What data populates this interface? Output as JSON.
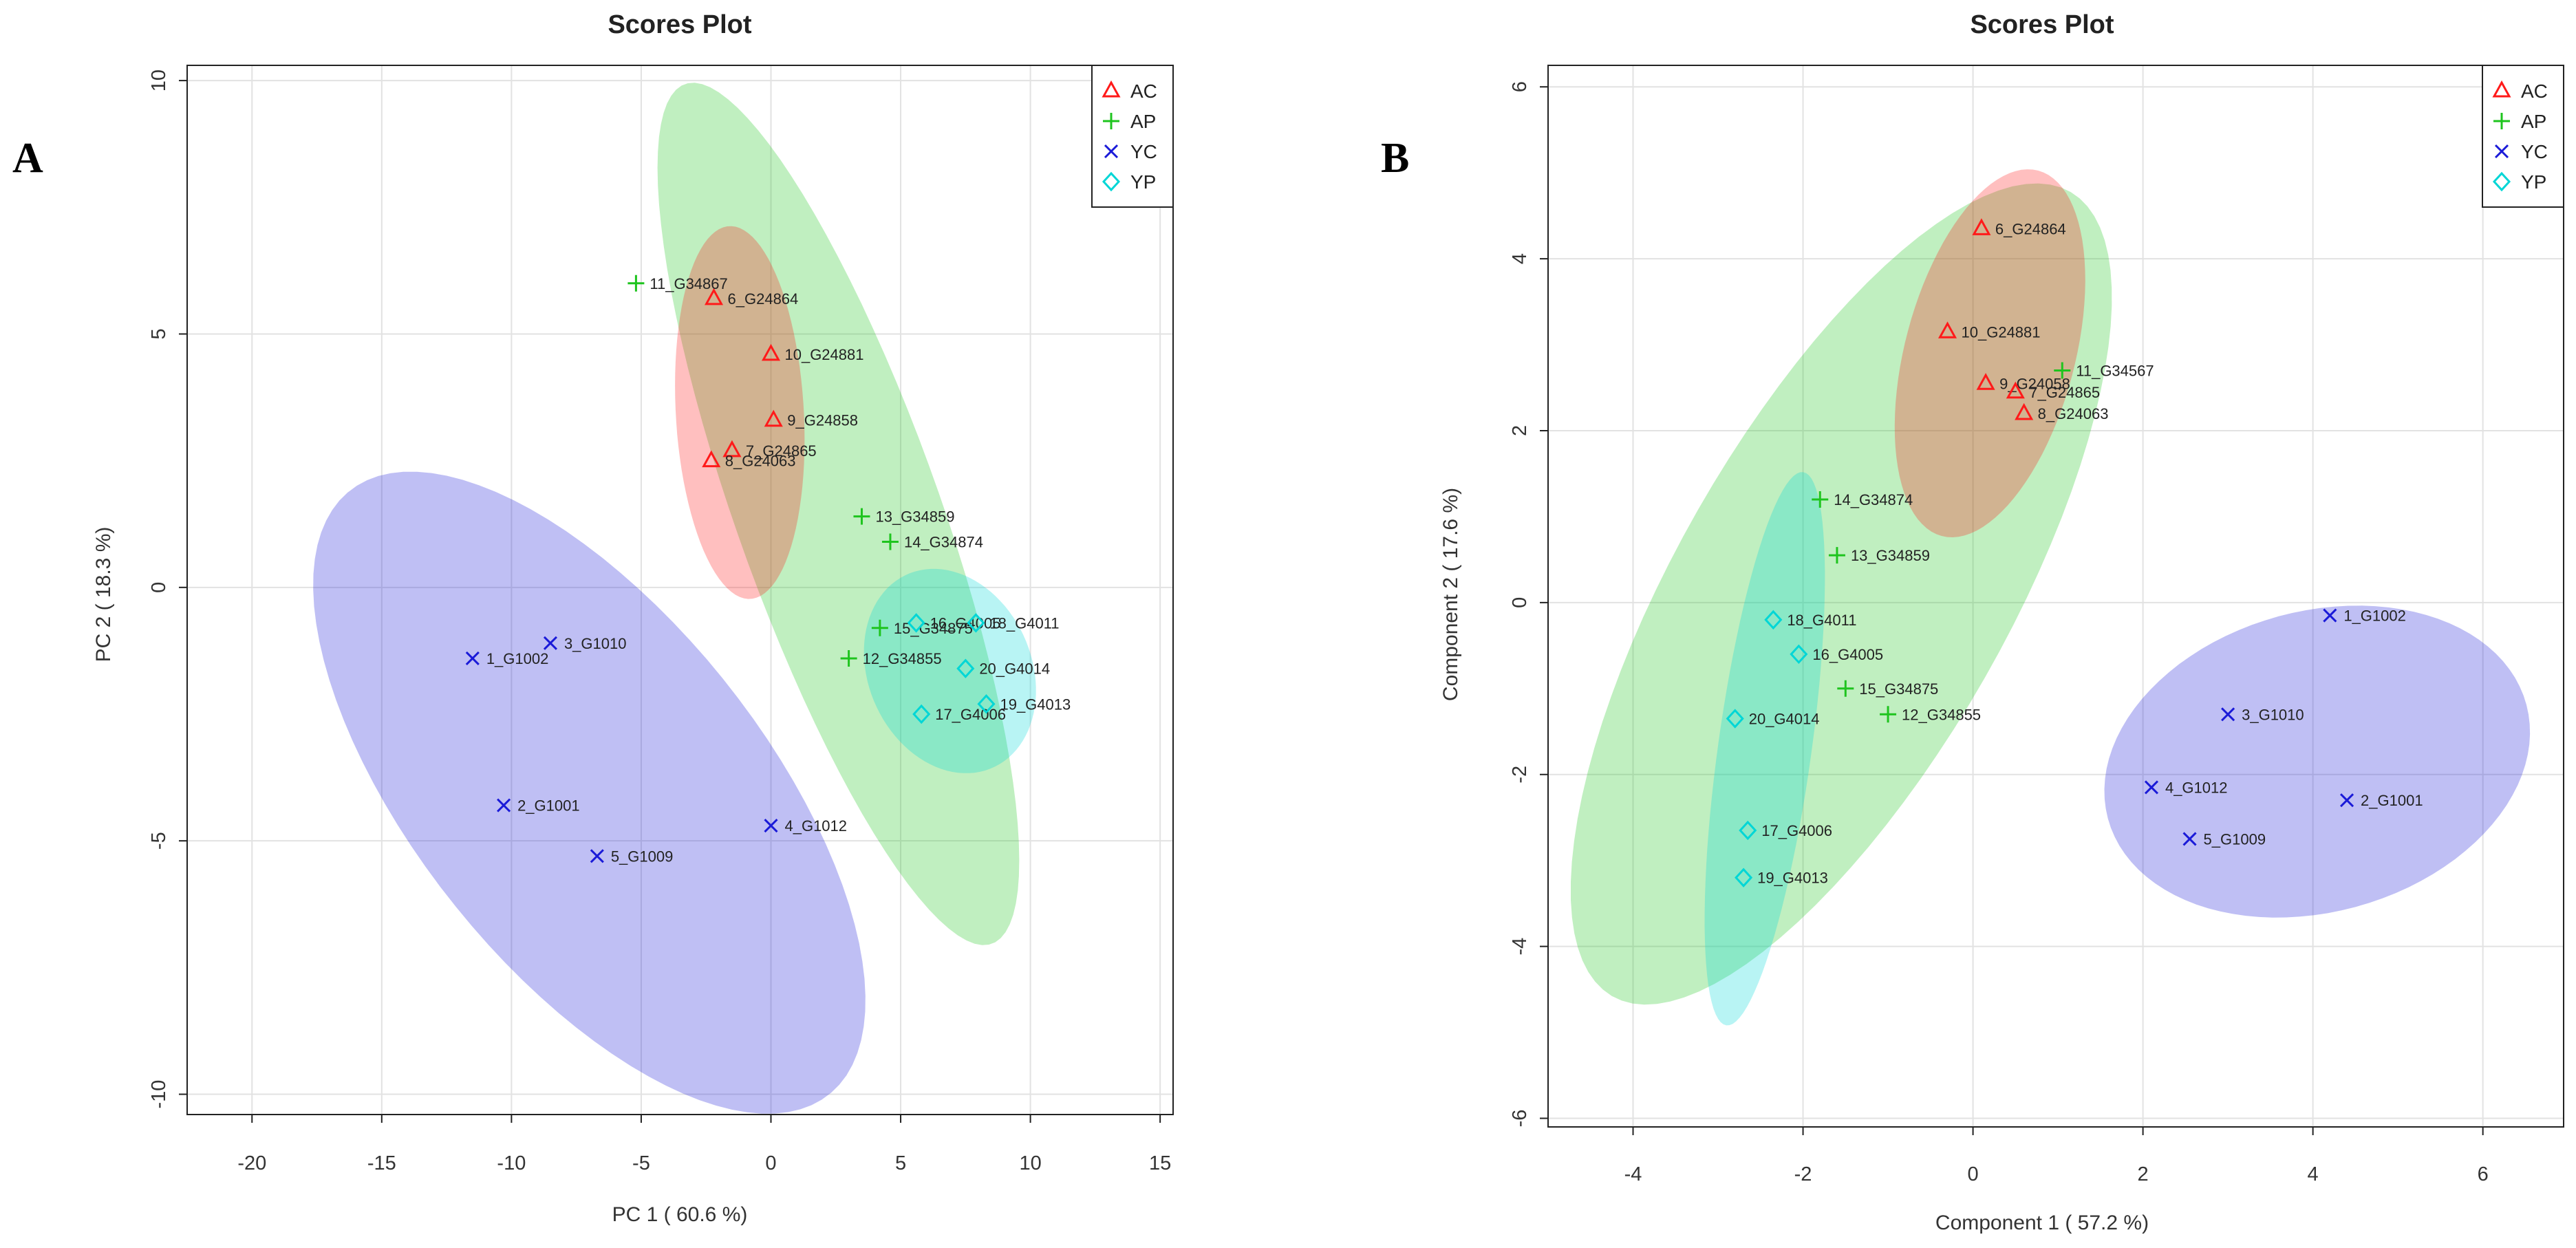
{
  "panel_letters": [
    "A",
    "B"
  ],
  "colors": {
    "AC": "#ff1a1a",
    "AP": "#1ec41e",
    "YC": "#1a1ad8",
    "YP": "#00d6d6"
  },
  "chart_data": [
    {
      "type": "scatter",
      "panel": "A",
      "title": "Scores Plot",
      "xlabel": "PC 1 ( 60.6 %)",
      "ylabel": "PC 2 ( 18.3 %)",
      "xlim": [
        -22.5,
        15.5
      ],
      "ylim": [
        -10.4,
        10.3
      ],
      "xticks": [
        -20,
        -15,
        -10,
        -5,
        0,
        5,
        10,
        15
      ],
      "yticks": [
        -10,
        -5,
        0,
        5,
        10
      ],
      "tick_labels_x": [
        "-20",
        "-15",
        "-10",
        "-5",
        "0",
        "5",
        "10",
        "15"
      ],
      "tick_labels_y": [
        "-10",
        "-5",
        "0",
        "5",
        "10"
      ],
      "legend": [
        "AC",
        "AP",
        "YC",
        "YP"
      ],
      "legend_position": "top-right",
      "series": [
        {
          "name": "AC",
          "marker": "triangle",
          "points": [
            {
              "x": -2.2,
              "y": 5.7,
              "label": "6_G24864"
            },
            {
              "x": 0.0,
              "y": 4.6,
              "label": "10_G24881"
            },
            {
              "x": 0.1,
              "y": 3.3,
              "label": "9_G24858"
            },
            {
              "x": -1.5,
              "y": 2.7,
              "label": "7_G24865"
            },
            {
              "x": -2.3,
              "y": 2.5,
              "label": "8_G24063"
            }
          ]
        },
        {
          "name": "AP",
          "marker": "plus",
          "points": [
            {
              "x": -5.2,
              "y": 6.0,
              "label": "11_G34867"
            },
            {
              "x": 3.5,
              "y": 1.4,
              "label": "13_G34859"
            },
            {
              "x": 4.6,
              "y": 0.9,
              "label": "14_G34874"
            },
            {
              "x": 4.2,
              "y": -0.8,
              "label": "15_G34875"
            },
            {
              "x": 3.0,
              "y": -1.4,
              "label": "12_G34855"
            }
          ]
        },
        {
          "name": "YC",
          "marker": "cross",
          "points": [
            {
              "x": -11.5,
              "y": -1.4,
              "label": "1_G1002"
            },
            {
              "x": -8.5,
              "y": -1.1,
              "label": "3_G1010"
            },
            {
              "x": -10.3,
              "y": -4.3,
              "label": "2_G1001"
            },
            {
              "x": -6.7,
              "y": -5.3,
              "label": "5_G1009"
            },
            {
              "x": 0.0,
              "y": -4.7,
              "label": "4_G1012"
            }
          ]
        },
        {
          "name": "YP",
          "marker": "diamond",
          "points": [
            {
              "x": 5.6,
              "y": -0.7,
              "label": "16_G4005"
            },
            {
              "x": 7.9,
              "y": -0.7,
              "label": "18_G4011"
            },
            {
              "x": 7.5,
              "y": -1.6,
              "label": "20_G4014"
            },
            {
              "x": 5.8,
              "y": -2.5,
              "label": "17_G4006"
            },
            {
              "x": 8.3,
              "y": -2.3,
              "label": "19_G4013"
            }
          ]
        }
      ],
      "ellipses": [
        {
          "group": "YC",
          "cx": -7.0,
          "cy": -4.05,
          "rx": 11.56,
          "ry": 4.45,
          "angle_deg": -25
        },
        {
          "group": "AP",
          "cx": 2.6,
          "cy": 1.45,
          "rx": 10.47,
          "ry": 3.37,
          "angle_deg": -52
        },
        {
          "group": "AC",
          "cx": -1.2,
          "cy": 3.45,
          "rx": 3.71,
          "ry": 2.45,
          "angle_deg": -80
        },
        {
          "group": "YP",
          "cx": 6.9,
          "cy": -1.65,
          "rx": 3.35,
          "ry": 1.96,
          "angle_deg": -10
        }
      ]
    },
    {
      "type": "scatter",
      "panel": "B",
      "title": "Scores Plot",
      "xlabel": "Component 1 ( 57.2 %)",
      "ylabel": "Component 2 ( 17.6 %)",
      "xlim": [
        -5.0,
        6.95
      ],
      "ylim": [
        -6.1,
        6.25
      ],
      "xticks": [
        -4,
        -2,
        0,
        2,
        4,
        6
      ],
      "yticks": [
        -6,
        -4,
        -2,
        0,
        2,
        4,
        6
      ],
      "tick_labels_x": [
        "-4",
        "-2",
        "0",
        "2",
        "4",
        "6"
      ],
      "tick_labels_y": [
        "-6",
        "-4",
        "-2",
        "0",
        "2",
        "4",
        "6"
      ],
      "legend": [
        "AC",
        "AP",
        "YC",
        "YP"
      ],
      "legend_position": "top-right",
      "series": [
        {
          "name": "AC",
          "marker": "triangle",
          "points": [
            {
              "x": 0.1,
              "y": 4.35,
              "label": "6_G24864"
            },
            {
              "x": -0.3,
              "y": 3.15,
              "label": "10_G24881"
            },
            {
              "x": 0.15,
              "y": 2.55,
              "label": "9_G24058"
            },
            {
              "x": 0.5,
              "y": 2.45,
              "label": "7_G24865"
            },
            {
              "x": 0.6,
              "y": 2.2,
              "label": "8_G24063"
            }
          ]
        },
        {
          "name": "AP",
          "marker": "plus",
          "points": [
            {
              "x": 1.05,
              "y": 2.7,
              "label": "11_G34567"
            },
            {
              "x": -1.8,
              "y": 1.2,
              "label": "14_G34874"
            },
            {
              "x": -1.6,
              "y": 0.55,
              "label": "13_G34859"
            },
            {
              "x": -1.5,
              "y": -1.0,
              "label": "15_G34875"
            },
            {
              "x": -1.0,
              "y": -1.3,
              "label": "12_G34855"
            }
          ]
        },
        {
          "name": "YC",
          "marker": "cross",
          "points": [
            {
              "x": 4.2,
              "y": -0.15,
              "label": "1_G1002"
            },
            {
              "x": 3.0,
              "y": -1.3,
              "label": "3_G1010"
            },
            {
              "x": 2.1,
              "y": -2.15,
              "label": "4_G1012"
            },
            {
              "x": 4.4,
              "y": -2.3,
              "label": "2_G1001"
            },
            {
              "x": 2.55,
              "y": -2.75,
              "label": "5_G1009"
            }
          ]
        },
        {
          "name": "YP",
          "marker": "diamond",
          "points": [
            {
              "x": -2.35,
              "y": -0.2,
              "label": "18_G4011"
            },
            {
              "x": -2.05,
              "y": -0.6,
              "label": "16_G4005"
            },
            {
              "x": -2.8,
              "y": -1.35,
              "label": "20_G4014"
            },
            {
              "x": -2.65,
              "y": -2.65,
              "label": "17_G4006"
            },
            {
              "x": -2.7,
              "y": -3.2,
              "label": "19_G4013"
            }
          ]
        }
      ],
      "ellipses": [
        {
          "group": "AP",
          "cx": -1.55,
          "cy": 0.1,
          "rx": 5.4,
          "ry": 1.95,
          "angle_deg": 60
        },
        {
          "group": "YP",
          "cx": -2.45,
          "cy": -1.7,
          "rx": 3.25,
          "ry": 0.55,
          "angle_deg": 82
        },
        {
          "group": "AC",
          "cx": 0.2,
          "cy": 2.9,
          "rx": 2.2,
          "ry": 1.0,
          "angle_deg": 75
        },
        {
          "group": "YC",
          "cx": 4.05,
          "cy": -1.85,
          "rx": 2.55,
          "ry": 1.75,
          "angle_deg": 15
        }
      ]
    }
  ]
}
